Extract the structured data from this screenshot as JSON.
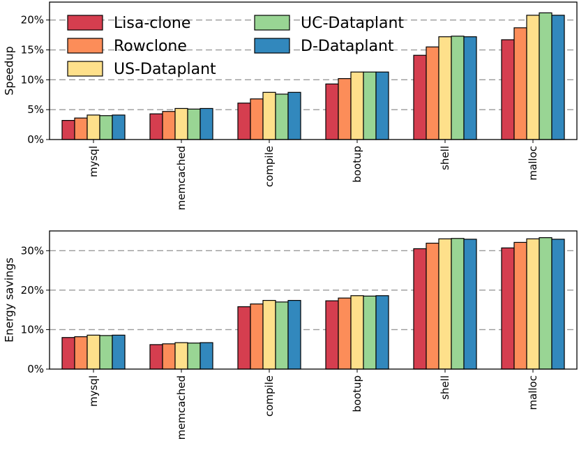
{
  "chart_data": [
    {
      "type": "bar",
      "ylabel": "Speedup",
      "ylim": [
        0,
        23
      ],
      "y_ticks": [
        0,
        5,
        10,
        15,
        20
      ],
      "y_tick_labels": [
        "0%",
        "5%",
        "10%",
        "15%",
        "20%"
      ],
      "grid": "horizontal dashed",
      "legend": "top-left",
      "categories": [
        "mysql",
        "memcached",
        "compile",
        "bootup",
        "shell",
        "malloc"
      ],
      "series": [
        {
          "name": "Lisa-clone",
          "color": "#d53e4f",
          "values": [
            3.2,
            4.3,
            6.1,
            9.3,
            14.1,
            16.7
          ]
        },
        {
          "name": "Rowclone",
          "color": "#fc8d59",
          "values": [
            3.6,
            4.7,
            6.8,
            10.2,
            15.5,
            18.7
          ]
        },
        {
          "name": "US-Dataplant",
          "color": "#fee08b",
          "values": [
            4.1,
            5.2,
            7.9,
            11.3,
            17.2,
            20.8
          ]
        },
        {
          "name": "UC-Dataplant",
          "color": "#99d594",
          "values": [
            4.0,
            5.1,
            7.6,
            11.3,
            17.3,
            21.2
          ]
        },
        {
          "name": "D-Dataplant",
          "color": "#3288bd",
          "values": [
            4.1,
            5.2,
            7.9,
            11.3,
            17.2,
            20.8
          ]
        }
      ]
    },
    {
      "type": "bar",
      "ylabel": "Energy savings",
      "ylim": [
        0,
        35
      ],
      "y_ticks": [
        0,
        10,
        20,
        30
      ],
      "y_tick_labels": [
        "0%",
        "10%",
        "20%",
        "30%"
      ],
      "grid": "horizontal dashed",
      "legend": "none",
      "categories": [
        "mysql",
        "memcached",
        "compile",
        "bootup",
        "shell",
        "malloc"
      ],
      "series": [
        {
          "name": "Lisa-clone",
          "color": "#d53e4f",
          "values": [
            8.0,
            6.2,
            15.8,
            17.3,
            30.5,
            30.7
          ]
        },
        {
          "name": "Rowclone",
          "color": "#fc8d59",
          "values": [
            8.2,
            6.4,
            16.5,
            18.0,
            31.9,
            32.1
          ]
        },
        {
          "name": "US-Dataplant",
          "color": "#fee08b",
          "values": [
            8.6,
            6.7,
            17.4,
            18.6,
            33.0,
            33.0
          ]
        },
        {
          "name": "UC-Dataplant",
          "color": "#99d594",
          "values": [
            8.5,
            6.6,
            17.0,
            18.5,
            33.1,
            33.3
          ]
        },
        {
          "name": "D-Dataplant",
          "color": "#3288bd",
          "values": [
            8.6,
            6.7,
            17.4,
            18.6,
            32.9,
            32.9
          ]
        }
      ]
    }
  ]
}
